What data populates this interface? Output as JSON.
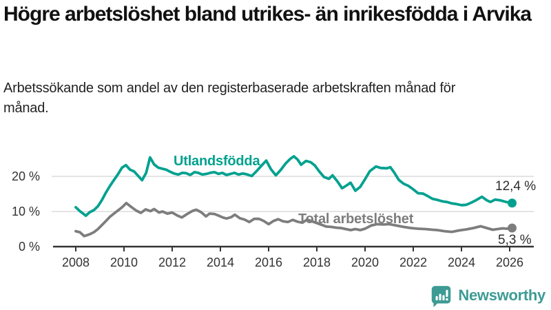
{
  "header": {
    "title": "Högre arbetslöshet bland utrikes- än inrikesfödda i Arvika",
    "subtitle": "Arbetssökande som andel av den registerbaserade arbetskraften månad för månad."
  },
  "branding": {
    "wordmark": "Newsworthy",
    "color": "#3d9b94",
    "icon": "speech-bubble-bar-chart"
  },
  "chart_data": {
    "type": "line",
    "title": "Högre arbetslöshet bland utrikes- än inrikesfödda i Arvika",
    "subtitle": "Arbetssökande som andel av den registerbaserade arbetskraften månad för månad.",
    "unit": "%",
    "grid": "horizontal",
    "legend_position": "inline-labels",
    "x_axis": {
      "min": 2008,
      "max": 2026.2,
      "ticks": [
        2008,
        2010,
        2012,
        2014,
        2016,
        2018,
        2020,
        2022,
        2024,
        2026
      ]
    },
    "y_axis": {
      "min": 0,
      "max": 27,
      "ticks": [
        {
          "value": 0,
          "label": "0 %"
        },
        {
          "value": 10,
          "label": "10 %"
        },
        {
          "value": 20,
          "label": "20 %"
        }
      ]
    },
    "style": {
      "grid_color": "#dcdcdc",
      "axis_color": "#333333",
      "background": "#ffffff"
    },
    "series": [
      {
        "id": "utlandsfodda",
        "name": "Utlandsfödda",
        "color": "#00a18f",
        "end_label": "12,4 %",
        "end_value": 12.4,
        "points": [
          [
            2008.0,
            11.2
          ],
          [
            2008.17,
            10.1
          ],
          [
            2008.42,
            8.8
          ],
          [
            2008.58,
            9.8
          ],
          [
            2008.75,
            10.4
          ],
          [
            2008.92,
            11.5
          ],
          [
            2009.08,
            13.2
          ],
          [
            2009.25,
            15.4
          ],
          [
            2009.42,
            17.3
          ],
          [
            2009.58,
            18.9
          ],
          [
            2009.75,
            20.6
          ],
          [
            2009.92,
            22.5
          ],
          [
            2010.08,
            23.2
          ],
          [
            2010.25,
            21.9
          ],
          [
            2010.42,
            21.4
          ],
          [
            2010.58,
            20.2
          ],
          [
            2010.75,
            18.9
          ],
          [
            2010.92,
            21.0
          ],
          [
            2011.08,
            25.4
          ],
          [
            2011.25,
            23.4
          ],
          [
            2011.42,
            22.5
          ],
          [
            2011.58,
            22.2
          ],
          [
            2011.75,
            21.9
          ],
          [
            2011.92,
            21.3
          ],
          [
            2012.08,
            20.8
          ],
          [
            2012.25,
            20.5
          ],
          [
            2012.42,
            21.0
          ],
          [
            2012.58,
            20.9
          ],
          [
            2012.75,
            20.4
          ],
          [
            2012.92,
            21.2
          ],
          [
            2013.08,
            21.0
          ],
          [
            2013.25,
            20.5
          ],
          [
            2013.42,
            20.7
          ],
          [
            2013.58,
            21.0
          ],
          [
            2013.75,
            21.2
          ],
          [
            2013.92,
            20.7
          ],
          [
            2014.08,
            21.0
          ],
          [
            2014.25,
            20.4
          ],
          [
            2014.42,
            20.7
          ],
          [
            2014.58,
            21.0
          ],
          [
            2014.75,
            20.5
          ],
          [
            2014.92,
            20.8
          ],
          [
            2015.08,
            20.6
          ],
          [
            2015.3,
            20.1
          ],
          [
            2015.5,
            21.5
          ],
          [
            2015.7,
            23.0
          ],
          [
            2015.9,
            24.5
          ],
          [
            2016.1,
            22.0
          ],
          [
            2016.3,
            20.3
          ],
          [
            2016.5,
            21.8
          ],
          [
            2016.7,
            23.6
          ],
          [
            2016.9,
            25.0
          ],
          [
            2017.05,
            25.7
          ],
          [
            2017.2,
            24.8
          ],
          [
            2017.35,
            23.3
          ],
          [
            2017.55,
            24.4
          ],
          [
            2017.75,
            24.0
          ],
          [
            2017.92,
            23.1
          ],
          [
            2018.1,
            21.4
          ],
          [
            2018.3,
            19.8
          ],
          [
            2018.5,
            19.3
          ],
          [
            2018.65,
            20.3
          ],
          [
            2018.85,
            18.6
          ],
          [
            2019.05,
            16.6
          ],
          [
            2019.25,
            17.5
          ],
          [
            2019.4,
            18.2
          ],
          [
            2019.6,
            15.9
          ],
          [
            2019.8,
            17.0
          ],
          [
            2020.0,
            19.2
          ],
          [
            2020.2,
            21.5
          ],
          [
            2020.45,
            22.8
          ],
          [
            2020.65,
            22.4
          ],
          [
            2020.9,
            22.3
          ],
          [
            2021.05,
            22.6
          ],
          [
            2021.2,
            21.2
          ],
          [
            2021.4,
            19.0
          ],
          [
            2021.6,
            17.9
          ],
          [
            2021.8,
            17.3
          ],
          [
            2022.0,
            16.3
          ],
          [
            2022.2,
            15.2
          ],
          [
            2022.4,
            15.1
          ],
          [
            2022.6,
            14.4
          ],
          [
            2022.8,
            13.6
          ],
          [
            2023.0,
            13.3
          ],
          [
            2023.2,
            12.9
          ],
          [
            2023.4,
            12.7
          ],
          [
            2023.6,
            12.3
          ],
          [
            2023.8,
            12.1
          ],
          [
            2024.0,
            11.8
          ],
          [
            2024.2,
            11.9
          ],
          [
            2024.4,
            12.5
          ],
          [
            2024.6,
            13.2
          ],
          [
            2024.85,
            14.2
          ],
          [
            2025.05,
            13.2
          ],
          [
            2025.2,
            12.7
          ],
          [
            2025.4,
            13.4
          ],
          [
            2025.6,
            13.2
          ],
          [
            2025.8,
            12.8
          ],
          [
            2026.0,
            12.5
          ],
          [
            2026.1,
            12.4
          ]
        ]
      },
      {
        "id": "total",
        "name": "Total arbetslöshet",
        "color": "#7d7d7d",
        "end_label": "5,3 %",
        "end_value": 5.3,
        "points": [
          [
            2008.0,
            4.4
          ],
          [
            2008.17,
            4.1
          ],
          [
            2008.35,
            3.0
          ],
          [
            2008.58,
            3.5
          ],
          [
            2008.75,
            4.1
          ],
          [
            2008.92,
            5.0
          ],
          [
            2009.08,
            6.1
          ],
          [
            2009.25,
            7.3
          ],
          [
            2009.42,
            8.5
          ],
          [
            2009.58,
            9.4
          ],
          [
            2009.75,
            10.3
          ],
          [
            2009.92,
            11.2
          ],
          [
            2010.1,
            12.4
          ],
          [
            2010.3,
            11.3
          ],
          [
            2010.5,
            10.3
          ],
          [
            2010.7,
            9.6
          ],
          [
            2010.9,
            10.6
          ],
          [
            2011.1,
            10.1
          ],
          [
            2011.25,
            10.7
          ],
          [
            2011.45,
            9.7
          ],
          [
            2011.6,
            10.0
          ],
          [
            2011.8,
            9.4
          ],
          [
            2012.0,
            9.7
          ],
          [
            2012.2,
            8.9
          ],
          [
            2012.4,
            8.3
          ],
          [
            2012.6,
            9.2
          ],
          [
            2012.85,
            10.2
          ],
          [
            2013.0,
            10.5
          ],
          [
            2013.2,
            9.8
          ],
          [
            2013.4,
            8.6
          ],
          [
            2013.55,
            9.4
          ],
          [
            2013.75,
            9.3
          ],
          [
            2013.9,
            8.9
          ],
          [
            2014.1,
            8.3
          ],
          [
            2014.25,
            8.0
          ],
          [
            2014.45,
            8.4
          ],
          [
            2014.6,
            9.1
          ],
          [
            2014.8,
            8.1
          ],
          [
            2015.0,
            7.7
          ],
          [
            2015.2,
            7.0
          ],
          [
            2015.4,
            7.9
          ],
          [
            2015.6,
            7.9
          ],
          [
            2015.8,
            7.3
          ],
          [
            2016.0,
            6.4
          ],
          [
            2016.2,
            7.3
          ],
          [
            2016.4,
            7.8
          ],
          [
            2016.6,
            7.2
          ],
          [
            2016.8,
            7.0
          ],
          [
            2017.0,
            7.6
          ],
          [
            2017.2,
            7.1
          ],
          [
            2017.4,
            6.8
          ],
          [
            2017.6,
            7.7
          ],
          [
            2017.8,
            7.2
          ],
          [
            2018.0,
            6.7
          ],
          [
            2018.2,
            6.2
          ],
          [
            2018.4,
            5.7
          ],
          [
            2018.6,
            5.6
          ],
          [
            2018.8,
            5.4
          ],
          [
            2019.0,
            5.3
          ],
          [
            2019.2,
            5.0
          ],
          [
            2019.4,
            4.7
          ],
          [
            2019.6,
            5.0
          ],
          [
            2019.8,
            4.7
          ],
          [
            2020.0,
            5.1
          ],
          [
            2020.25,
            6.0
          ],
          [
            2020.5,
            6.4
          ],
          [
            2020.75,
            6.3
          ],
          [
            2021.0,
            6.4
          ],
          [
            2021.3,
            6.0
          ],
          [
            2021.6,
            5.6
          ],
          [
            2021.9,
            5.3
          ],
          [
            2022.2,
            5.1
          ],
          [
            2022.5,
            5.0
          ],
          [
            2022.8,
            4.8
          ],
          [
            2023.0,
            4.7
          ],
          [
            2023.3,
            4.4
          ],
          [
            2023.6,
            4.2
          ],
          [
            2023.9,
            4.6
          ],
          [
            2024.2,
            4.9
          ],
          [
            2024.5,
            5.3
          ],
          [
            2024.8,
            5.8
          ],
          [
            2025.05,
            5.3
          ],
          [
            2025.3,
            4.8
          ],
          [
            2025.5,
            5.0
          ],
          [
            2025.7,
            5.2
          ],
          [
            2025.9,
            5.1
          ],
          [
            2026.1,
            5.3
          ]
        ]
      }
    ]
  }
}
